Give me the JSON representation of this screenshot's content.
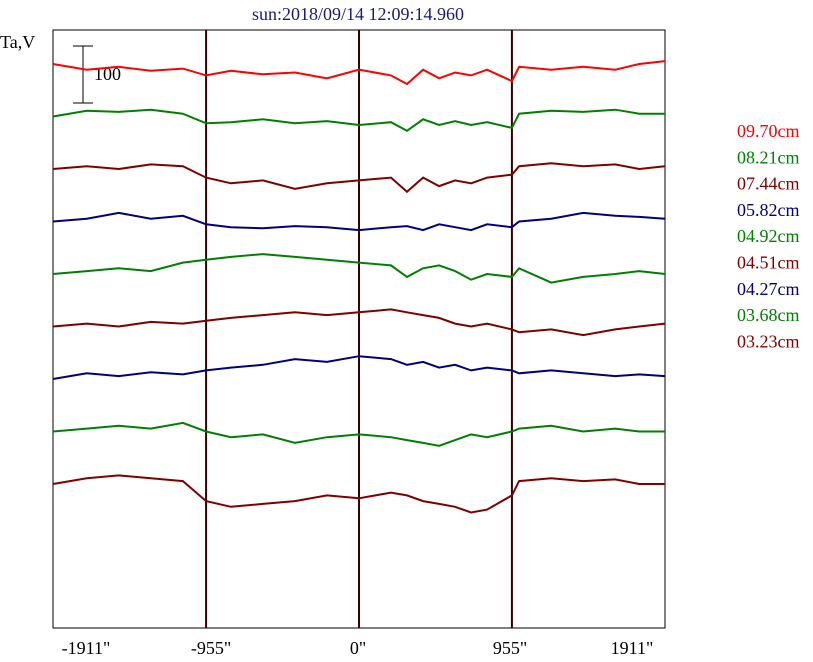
{
  "header": {
    "title": "sun:2018/09/14 12:09:14.960",
    "title_color": "#1a1a7a"
  },
  "axis": {
    "ylabel": "Ta,V",
    "scale_bar_label": "100",
    "x_ticks": [
      "-1911\"",
      "-955\"",
      "0\"",
      "955\"",
      "1911\""
    ]
  },
  "legend": {
    "items": [
      {
        "label": "09.70cm",
        "color": "#ff0000"
      },
      {
        "label": "08.21cm",
        "color": "#008000"
      },
      {
        "label": "07.44cm",
        "color": "#800000"
      },
      {
        "label": "05.82cm",
        "color": "#000080"
      },
      {
        "label": "04.92cm",
        "color": "#008000"
      },
      {
        "label": "04.51cm",
        "color": "#800000"
      },
      {
        "label": "04.27cm",
        "color": "#000080"
      },
      {
        "label": "03.68cm",
        "color": "#008000"
      },
      {
        "label": "03.23cm",
        "color": "#800000"
      }
    ]
  },
  "chart_data": {
    "type": "line",
    "title": "sun:2018/09/14 12:09:14.960",
    "ylabel": "Ta,V",
    "xlim": [
      -1911,
      1911
    ],
    "x_ticks": [
      -1911,
      -955,
      0,
      955,
      1911
    ],
    "vlines": [
      -955,
      0,
      955
    ],
    "scale_bar": 100,
    "series": [
      {
        "name": "09.70cm",
        "color": "#ff0000",
        "level": 0,
        "points": [
          [
            -1911,
            0
          ],
          [
            -1700,
            -10
          ],
          [
            -1500,
            -5
          ],
          [
            -1300,
            -12
          ],
          [
            -1100,
            -8
          ],
          [
            -955,
            -20
          ],
          [
            -800,
            -12
          ],
          [
            -600,
            -18
          ],
          [
            -400,
            -15
          ],
          [
            -200,
            -25
          ],
          [
            0,
            -10
          ],
          [
            200,
            -20
          ],
          [
            300,
            -35
          ],
          [
            400,
            -10
          ],
          [
            500,
            -25
          ],
          [
            600,
            -15
          ],
          [
            700,
            -20
          ],
          [
            800,
            -10
          ],
          [
            955,
            -30
          ],
          [
            1000,
            -5
          ],
          [
            1200,
            -10
          ],
          [
            1400,
            -5
          ],
          [
            1600,
            -10
          ],
          [
            1750,
            0
          ],
          [
            1911,
            5
          ]
        ]
      },
      {
        "name": "08.21cm",
        "color": "#008000",
        "level": 1,
        "points": [
          [
            -1911,
            0
          ],
          [
            -1700,
            10
          ],
          [
            -1500,
            8
          ],
          [
            -1300,
            12
          ],
          [
            -1100,
            5
          ],
          [
            -955,
            -12
          ],
          [
            -800,
            -10
          ],
          [
            -600,
            -5
          ],
          [
            -400,
            -12
          ],
          [
            -200,
            -8
          ],
          [
            0,
            -15
          ],
          [
            200,
            -10
          ],
          [
            300,
            -25
          ],
          [
            400,
            -5
          ],
          [
            500,
            -15
          ],
          [
            600,
            -8
          ],
          [
            700,
            -15
          ],
          [
            800,
            -10
          ],
          [
            955,
            -20
          ],
          [
            1000,
            5
          ],
          [
            1200,
            10
          ],
          [
            1400,
            8
          ],
          [
            1600,
            12
          ],
          [
            1750,
            5
          ],
          [
            1911,
            5
          ]
        ]
      },
      {
        "name": "07.44cm",
        "color": "#800000",
        "level": 2,
        "points": [
          [
            -1911,
            0
          ],
          [
            -1700,
            5
          ],
          [
            -1500,
            0
          ],
          [
            -1300,
            8
          ],
          [
            -1100,
            5
          ],
          [
            -955,
            -15
          ],
          [
            -800,
            -25
          ],
          [
            -600,
            -20
          ],
          [
            -400,
            -35
          ],
          [
            -200,
            -25
          ],
          [
            0,
            -20
          ],
          [
            200,
            -15
          ],
          [
            300,
            -40
          ],
          [
            400,
            -15
          ],
          [
            500,
            -30
          ],
          [
            600,
            -20
          ],
          [
            700,
            -25
          ],
          [
            800,
            -15
          ],
          [
            955,
            -10
          ],
          [
            1000,
            5
          ],
          [
            1200,
            10
          ],
          [
            1400,
            5
          ],
          [
            1600,
            8
          ],
          [
            1750,
            0
          ],
          [
            1911,
            5
          ]
        ]
      },
      {
        "name": "05.82cm",
        "color": "#000080",
        "level": 3,
        "points": [
          [
            -1911,
            0
          ],
          [
            -1700,
            5
          ],
          [
            -1500,
            15
          ],
          [
            -1300,
            5
          ],
          [
            -1100,
            10
          ],
          [
            -955,
            -5
          ],
          [
            -800,
            -10
          ],
          [
            -600,
            -12
          ],
          [
            -400,
            -8
          ],
          [
            -200,
            -10
          ],
          [
            0,
            -15
          ],
          [
            200,
            -10
          ],
          [
            300,
            -8
          ],
          [
            400,
            -15
          ],
          [
            500,
            -5
          ],
          [
            600,
            -10
          ],
          [
            700,
            -15
          ],
          [
            800,
            -5
          ],
          [
            955,
            -10
          ],
          [
            1000,
            0
          ],
          [
            1200,
            5
          ],
          [
            1400,
            15
          ],
          [
            1600,
            10
          ],
          [
            1750,
            8
          ],
          [
            1911,
            5
          ]
        ]
      },
      {
        "name": "04.92cm",
        "color": "#008000",
        "level": 4,
        "points": [
          [
            -1911,
            0
          ],
          [
            -1700,
            5
          ],
          [
            -1500,
            10
          ],
          [
            -1300,
            5
          ],
          [
            -1100,
            20
          ],
          [
            -955,
            25
          ],
          [
            -800,
            30
          ],
          [
            -600,
            35
          ],
          [
            -400,
            30
          ],
          [
            -200,
            25
          ],
          [
            0,
            20
          ],
          [
            200,
            15
          ],
          [
            300,
            -5
          ],
          [
            400,
            10
          ],
          [
            500,
            15
          ],
          [
            600,
            5
          ],
          [
            700,
            -10
          ],
          [
            800,
            0
          ],
          [
            955,
            -5
          ],
          [
            1000,
            10
          ],
          [
            1200,
            -15
          ],
          [
            1400,
            -5
          ],
          [
            1600,
            0
          ],
          [
            1750,
            5
          ],
          [
            1911,
            0
          ]
        ]
      },
      {
        "name": "04.51cm",
        "color": "#800000",
        "level": 5,
        "points": [
          [
            -1911,
            0
          ],
          [
            -1700,
            5
          ],
          [
            -1500,
            0
          ],
          [
            -1300,
            8
          ],
          [
            -1100,
            5
          ],
          [
            -955,
            10
          ],
          [
            -800,
            15
          ],
          [
            -600,
            20
          ],
          [
            -400,
            25
          ],
          [
            -200,
            20
          ],
          [
            0,
            25
          ],
          [
            200,
            30
          ],
          [
            300,
            25
          ],
          [
            400,
            20
          ],
          [
            500,
            15
          ],
          [
            600,
            5
          ],
          [
            700,
            0
          ],
          [
            800,
            5
          ],
          [
            955,
            -5
          ],
          [
            1000,
            -10
          ],
          [
            1200,
            -5
          ],
          [
            1400,
            -15
          ],
          [
            1600,
            -5
          ],
          [
            1750,
            0
          ],
          [
            1911,
            5
          ]
        ]
      },
      {
        "name": "04.27cm",
        "color": "#000080",
        "level": 6,
        "points": [
          [
            -1911,
            0
          ],
          [
            -1700,
            10
          ],
          [
            -1500,
            5
          ],
          [
            -1300,
            12
          ],
          [
            -1100,
            8
          ],
          [
            -955,
            15
          ],
          [
            -800,
            20
          ],
          [
            -600,
            25
          ],
          [
            -400,
            35
          ],
          [
            -200,
            30
          ],
          [
            0,
            40
          ],
          [
            200,
            35
          ],
          [
            300,
            25
          ],
          [
            400,
            30
          ],
          [
            500,
            20
          ],
          [
            600,
            25
          ],
          [
            700,
            15
          ],
          [
            800,
            20
          ],
          [
            955,
            15
          ],
          [
            1000,
            10
          ],
          [
            1200,
            15
          ],
          [
            1400,
            10
          ],
          [
            1600,
            5
          ],
          [
            1750,
            8
          ],
          [
            1911,
            5
          ]
        ]
      },
      {
        "name": "03.68cm",
        "color": "#008000",
        "level": 7,
        "points": [
          [
            -1911,
            0
          ],
          [
            -1700,
            5
          ],
          [
            -1500,
            10
          ],
          [
            -1300,
            5
          ],
          [
            -1100,
            15
          ],
          [
            -955,
            0
          ],
          [
            -800,
            -10
          ],
          [
            -600,
            -5
          ],
          [
            -400,
            -20
          ],
          [
            -200,
            -10
          ],
          [
            0,
            -5
          ],
          [
            200,
            -10
          ],
          [
            300,
            -15
          ],
          [
            400,
            -20
          ],
          [
            500,
            -25
          ],
          [
            600,
            -15
          ],
          [
            700,
            -5
          ],
          [
            800,
            -10
          ],
          [
            955,
            0
          ],
          [
            1000,
            5
          ],
          [
            1200,
            10
          ],
          [
            1400,
            0
          ],
          [
            1600,
            5
          ],
          [
            1750,
            0
          ],
          [
            1911,
            0
          ]
        ]
      },
      {
        "name": "03.23cm",
        "color": "#800000",
        "level": 8,
        "points": [
          [
            -1911,
            0
          ],
          [
            -1700,
            10
          ],
          [
            -1500,
            15
          ],
          [
            -1300,
            10
          ],
          [
            -1100,
            5
          ],
          [
            -955,
            -30
          ],
          [
            -800,
            -40
          ],
          [
            -600,
            -35
          ],
          [
            -400,
            -30
          ],
          [
            -200,
            -20
          ],
          [
            0,
            -25
          ],
          [
            200,
            -15
          ],
          [
            300,
            -20
          ],
          [
            400,
            -30
          ],
          [
            500,
            -35
          ],
          [
            600,
            -40
          ],
          [
            700,
            -50
          ],
          [
            800,
            -45
          ],
          [
            955,
            -20
          ],
          [
            1000,
            5
          ],
          [
            1200,
            10
          ],
          [
            1400,
            5
          ],
          [
            1600,
            8
          ],
          [
            1750,
            0
          ],
          [
            1911,
            0
          ]
        ]
      }
    ]
  }
}
